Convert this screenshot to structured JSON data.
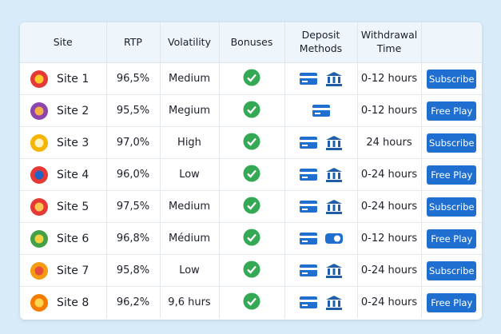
{
  "table": {
    "header": [
      "Site",
      "RTP",
      "Volatility",
      "Bonuses",
      "Deposit Methods",
      "Withdrawal Time"
    ],
    "rows": [
      {
        "site": "Site 1",
        "rtp": "96,5%",
        "volatility": "Medium",
        "withdrawal": "0-12 hours",
        "button": "Subscribe"
      },
      {
        "site": "Site 2",
        "rtp": "95,5%",
        "volatility": "Megium",
        "withdrawal": "0-12 hours",
        "button": "Free Play"
      },
      {
        "site": "Site 3",
        "rtp": "97,0%",
        "volatility": "High",
        "withdrawal": "24 hours",
        "button": "Subscribe"
      },
      {
        "site": "Site 4",
        "rtp": "96,0%",
        "volatility": "Low",
        "withdrawal": "0-24 hours",
        "button": "Free Play"
      },
      {
        "site": "Site 5",
        "rtp": "97,5%",
        "volatility": "Medium",
        "withdrawal": "0-24 hours",
        "button": "Subscribe"
      },
      {
        "site": "Site 6",
        "rtp": "96,8%",
        "volatility": "Médium",
        "withdrawal": "0-12 hours",
        "button": "Free Play"
      },
      {
        "site": "Site 7",
        "rtp": "95,8%",
        "volatility": "Low",
        "withdrawal": "0-24 hours",
        "button": "Subscribe"
      },
      {
        "site": "Site 8",
        "rtp": "96,2%",
        "volatility": "9,6 hurs",
        "withdrawal": "0-24 hours",
        "button": "Free Play"
      }
    ]
  }
}
